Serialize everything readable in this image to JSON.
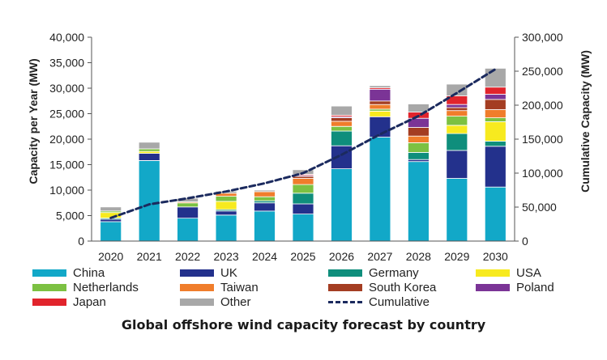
{
  "caption": "Global offshore wind capacity forecast by country",
  "chart_data": {
    "type": "bar",
    "stacked": true,
    "categories": [
      "2020",
      "2021",
      "2022",
      "2023",
      "2024",
      "2025",
      "2026",
      "2027",
      "2028",
      "2029",
      "2030"
    ],
    "ylabel": "Capacity per Year (MW)",
    "y2label": "Cumulative Capacity (MW)",
    "ylim": [
      0,
      40000
    ],
    "y2lim": [
      0,
      300000
    ],
    "yticks": [
      "0",
      "5,000",
      "10,000",
      "15,000",
      "20,000",
      "25,000",
      "30,000",
      "35,000",
      "40,000"
    ],
    "y2ticks": [
      "0",
      "50,000",
      "100,000",
      "150,000",
      "200,000",
      "250,000",
      "300,000"
    ],
    "series": [
      {
        "name": "China",
        "color": "#12a8c8",
        "values": [
          3800,
          15800,
          4500,
          5100,
          5900,
          5300,
          14200,
          20400,
          15600,
          12300,
          10600
        ]
      },
      {
        "name": "UK",
        "color": "#23318c",
        "values": [
          500,
          1400,
          2200,
          800,
          1600,
          2000,
          4500,
          4000,
          400,
          5500,
          8000
        ]
      },
      {
        "name": "Germany",
        "color": "#0f8e7c",
        "values": [
          200,
          0,
          0,
          300,
          400,
          2100,
          2900,
          0,
          1400,
          3300,
          1000
        ]
      },
      {
        "name": "USA",
        "color": "#f7ea1f",
        "values": [
          1100,
          400,
          0,
          1600,
          0,
          0,
          0,
          1100,
          0,
          1600,
          3800
        ]
      },
      {
        "name": "Netherlands",
        "color": "#7cc142",
        "values": [
          300,
          500,
          800,
          1000,
          800,
          1700,
          900,
          400,
          1900,
          1800,
          800
        ]
      },
      {
        "name": "Taiwan",
        "color": "#f07d2b",
        "values": [
          0,
          0,
          200,
          600,
          1000,
          1200,
          1000,
          900,
          1300,
          1100,
          1600
        ]
      },
      {
        "name": "South Korea",
        "color": "#a43d22",
        "values": [
          0,
          0,
          0,
          0,
          0,
          400,
          700,
          700,
          1700,
          600,
          2000
        ]
      },
      {
        "name": "Poland",
        "color": "#7b3496",
        "values": [
          0,
          0,
          0,
          0,
          0,
          200,
          200,
          2300,
          1800,
          600,
          1000
        ]
      },
      {
        "name": "Japan",
        "color": "#e1242c",
        "values": [
          0,
          0,
          0,
          0,
          0,
          200,
          300,
          300,
          1200,
          1700,
          1400
        ]
      },
      {
        "name": "Other",
        "color": "#a8a8a8",
        "values": [
          800,
          1300,
          700,
          400,
          300,
          900,
          1800,
          400,
          1600,
          2300,
          3700
        ]
      }
    ],
    "cumulative": {
      "name": "Cumulative",
      "color": "#1b2a5e",
      "values": [
        34000,
        54000,
        63000,
        73000,
        85000,
        100000,
        127000,
        157000,
        184000,
        218000,
        253000
      ]
    },
    "legend_position": "bottom",
    "grid": false
  }
}
